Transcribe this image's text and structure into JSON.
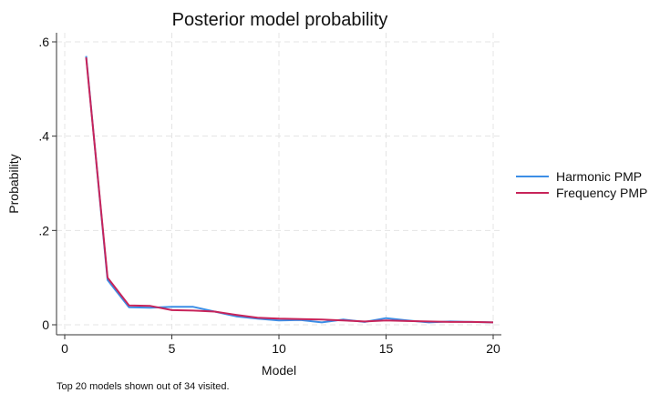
{
  "chart_data": {
    "type": "line",
    "title": "Posterior model probability",
    "xlabel": "Model",
    "ylabel": "Probability",
    "xlim": [
      0,
      20
    ],
    "ylim": [
      0,
      0.6
    ],
    "x_ticks": [
      0,
      5,
      10,
      15,
      20
    ],
    "x_tick_labels": [
      "0",
      "5",
      "10",
      "15",
      "20"
    ],
    "y_ticks": [
      0,
      0.2,
      0.4,
      0.6
    ],
    "y_tick_labels": [
      "0",
      ".2",
      ".4",
      ".6"
    ],
    "grid": true,
    "legend_position": "right",
    "note": "Top 20 models shown out of 34 visited.",
    "x": [
      1,
      2,
      3,
      4,
      5,
      6,
      7,
      8,
      9,
      10,
      11,
      12,
      13,
      14,
      15,
      16,
      17,
      18,
      19,
      20
    ],
    "series": [
      {
        "name": "Harmonic PMP",
        "color": "#3c8ee6",
        "values": [
          0.57,
          0.095,
          0.037,
          0.036,
          0.038,
          0.038,
          0.028,
          0.018,
          0.013,
          0.009,
          0.01,
          0.005,
          0.011,
          0.006,
          0.014,
          0.009,
          0.005,
          0.007,
          0.006,
          0.005
        ]
      },
      {
        "name": "Frequency PMP",
        "color": "#c8245a",
        "values": [
          0.567,
          0.1,
          0.041,
          0.04,
          0.031,
          0.03,
          0.028,
          0.021,
          0.015,
          0.013,
          0.012,
          0.011,
          0.009,
          0.007,
          0.009,
          0.008,
          0.007,
          0.006,
          0.006,
          0.005
        ]
      }
    ]
  }
}
